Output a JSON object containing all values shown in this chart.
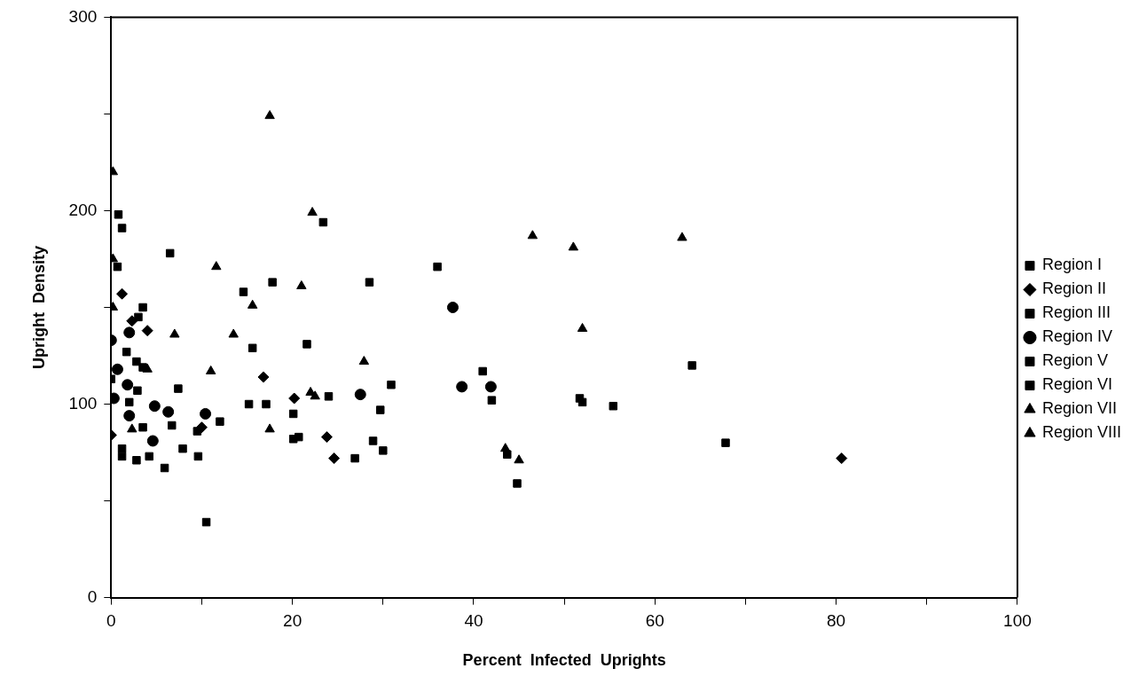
{
  "chart_data": {
    "type": "scatter",
    "xlabel": "Percent  Infected  Uprights",
    "ylabel": "Upright  Density",
    "xlim": [
      0,
      100
    ],
    "xticks": [
      0,
      {
        "value": 10,
        "label": null
      },
      20,
      {
        "value": 30,
        "label": null
      },
      40,
      {
        "value": 50,
        "label": null
      },
      60,
      {
        "value": 70,
        "label": null
      },
      80,
      {
        "value": 90,
        "label": null
      },
      100
    ],
    "ylim": [
      0,
      300
    ],
    "yticks": [
      0,
      {
        "value": 50,
        "label": null
      },
      100,
      {
        "value": 150,
        "label": null
      },
      200,
      {
        "value": 250,
        "label": null
      },
      300
    ],
    "grid": false,
    "legend": "right",
    "series": [
      {
        "name": "Region I",
        "color": "#000000",
        "marker": "square",
        "x": [
          1.7,
          2.9,
          2,
          1.2,
          1.2,
          2.8,
          4.2,
          7.4,
          7.9,
          9.6,
          20.1,
          20.7,
          29.7,
          30,
          41,
          43.7,
          51.7,
          67.8
        ],
        "values": [
          127,
          107,
          101,
          77,
          73,
          71,
          73,
          108,
          77,
          73,
          95,
          83,
          97,
          76,
          117,
          74,
          103,
          80
        ]
      },
      {
        "name": "Region II",
        "color": "#000000",
        "marker": "diamond",
        "x": [
          0,
          1.2,
          4,
          16.8,
          23.8,
          24.6,
          20.2,
          80.6,
          10,
          2.3
        ],
        "values": [
          84,
          157,
          138,
          114,
          83,
          72,
          103,
          72,
          88,
          143
        ]
      },
      {
        "name": "Region III",
        "color": "#000000",
        "marker": "square",
        "x": [
          3,
          6.7,
          5.9,
          14.6,
          23.4,
          24,
          17.1,
          42,
          2.8,
          9.5,
          3.5
        ],
        "values": [
          145,
          89,
          67,
          158,
          194,
          104,
          100,
          102,
          122,
          86,
          119
        ]
      },
      {
        "name": "Region IV",
        "color": "#000000",
        "marker": "circle",
        "x": [
          0,
          0.7,
          1.8,
          2,
          4.6,
          4.8,
          6.3,
          10.4,
          37.7,
          38.7,
          41.9,
          27.5,
          2,
          0.3
        ],
        "values": [
          133,
          118,
          110,
          94,
          81,
          99,
          96,
          95,
          150,
          109,
          109,
          105,
          137,
          103
        ]
      },
      {
        "name": "Region V",
        "color": "#000000",
        "marker": "square",
        "x": [
          0.8,
          1.2,
          0.7,
          6.5,
          3.5,
          15.6,
          15.2,
          20.1,
          26.9,
          28.9,
          28.5,
          36,
          52,
          64.1,
          3.5,
          0
        ],
        "values": [
          198,
          191,
          171,
          178,
          150,
          129,
          100,
          82,
          72,
          81,
          163,
          171,
          101,
          120,
          88,
          113
        ]
      },
      {
        "name": "Region VI",
        "color": "#000000",
        "marker": "square",
        "x": [
          17.8,
          10.5,
          44.8,
          30.9,
          12,
          21.6,
          55.4
        ],
        "values": [
          163,
          39,
          59,
          110,
          91,
          131,
          99
        ]
      },
      {
        "name": "Region VII",
        "color": "#000000",
        "marker": "triangle",
        "x": [
          0.2,
          11.6,
          15.6,
          21,
          27.9,
          22.2,
          17.5,
          2.3,
          0.2,
          4,
          43.5,
          45,
          22.5,
          11
        ],
        "values": [
          220,
          171,
          151,
          161,
          122,
          199,
          87,
          87,
          150,
          118,
          77,
          71,
          104,
          117
        ]
      },
      {
        "name": "Region VIII",
        "color": "#000000",
        "marker": "triangle",
        "x": [
          17.5,
          0.2,
          46.5,
          51,
          63,
          52,
          7,
          13.5,
          22
        ],
        "values": [
          249,
          175,
          187,
          181,
          186,
          139,
          136,
          136,
          106
        ]
      }
    ]
  }
}
